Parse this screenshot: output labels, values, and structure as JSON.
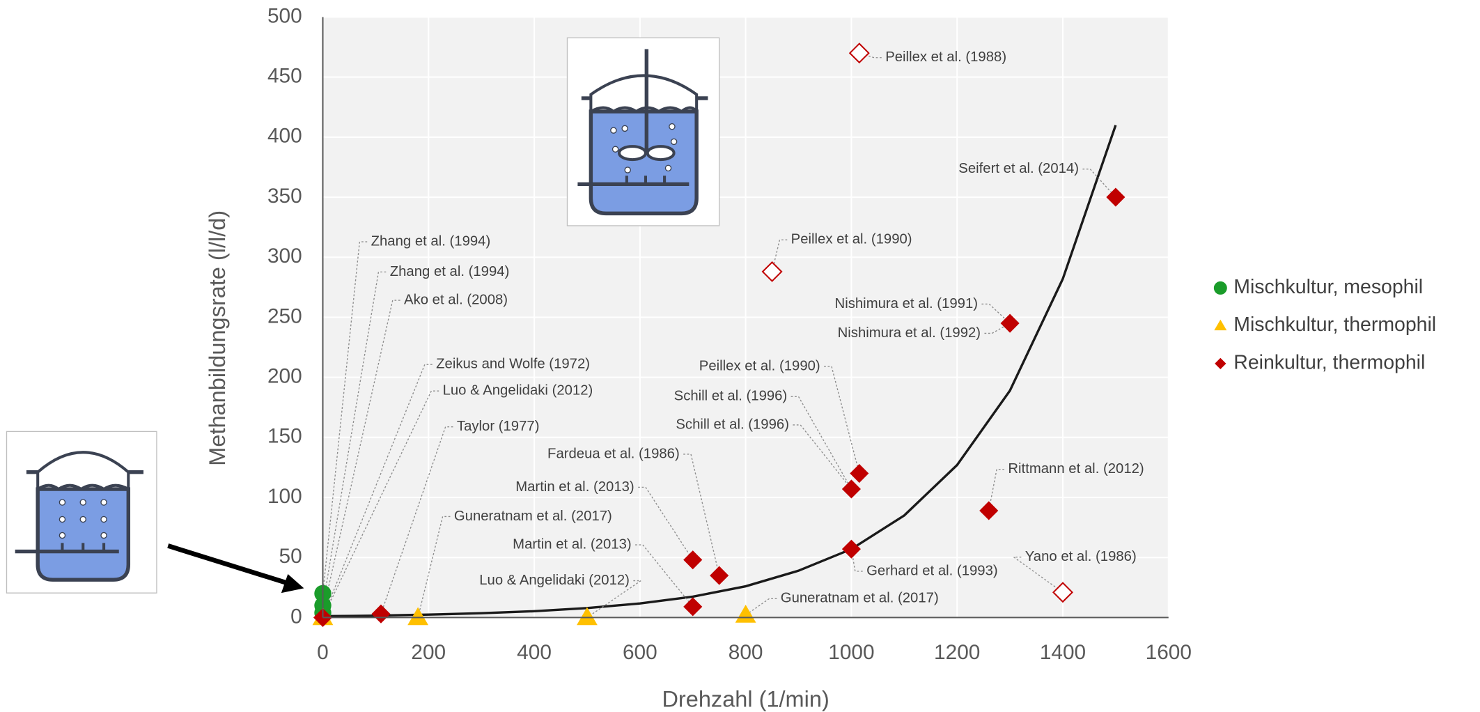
{
  "chart_data": {
    "type": "scatter",
    "x_label": "Drehzahl (1/min)",
    "y_label": "Methanbildungsrate (l/l/d)",
    "xlim": [
      0,
      1600
    ],
    "xticks": [
      0,
      200,
      400,
      600,
      800,
      1000,
      1200,
      1400,
      1600
    ],
    "ylim": [
      0,
      500
    ],
    "yticks": [
      0,
      50,
      100,
      150,
      200,
      250,
      300,
      350,
      400,
      450,
      500
    ],
    "grid": true,
    "legend": "right",
    "series": [
      {
        "name": "Mischkultur, mesophil",
        "color": "#1a9c2a",
        "marker": "circle",
        "x": [
          0,
          0,
          0
        ],
        "values": [
          20,
          10,
          4
        ]
      },
      {
        "name": "Mischkultur, thermophil",
        "color": "#ffc000",
        "marker": "triangle",
        "x": [
          0,
          180,
          500,
          800
        ],
        "values": [
          0,
          0,
          0,
          2
        ]
      },
      {
        "name": "Reinkultur, thermophil",
        "color": "#c00000",
        "marker": "diamond",
        "x": [
          0,
          110,
          700,
          700,
          750,
          1000,
          1015,
          1000,
          1260,
          1300,
          1500
        ],
        "values": [
          0,
          3,
          48,
          9,
          35,
          107,
          120,
          57,
          89,
          245,
          350
        ]
      },
      {
        "color": "#c00000",
        "marker": "diamond-open",
        "x": [
          1015,
          850,
          1400
        ],
        "values": [
          470,
          288,
          21
        ]
      },
      {
        "type": "line",
        "color": "#1a1a1a",
        "x": [
          0,
          100,
          200,
          300,
          400,
          500,
          600,
          700,
          800,
          900,
          1000,
          1100,
          1200,
          1300,
          1400,
          1500
        ],
        "values": [
          1.1,
          1.6,
          2.4,
          3.6,
          5.3,
          7.9,
          11.7,
          17.4,
          26,
          39,
          57,
          85,
          127,
          189,
          282,
          410
        ]
      }
    ],
    "annotations": [
      "Zhang et al. (1994)",
      "Zhang et al. (1994)",
      "Ako et al. (2008)",
      "Zeikus and Wolfe (1972)",
      "Luo & Angelidaki (2012)",
      "Taylor (1977)",
      "Guneratnam et al. (2017)",
      "Luo & Angelidaki (2012)",
      "Martin et al. (2013)",
      "Martin et al. (2013)",
      "Fardeua et al. (1986)",
      "Schill et al. (1996)",
      "Schill et al. (1996)",
      "Peillex et al. (1990)",
      "Gerhard et al. (1993)",
      "Guneratnam et al. (2017)",
      "Rittmann et al. (2012)",
      "Yano et al. (1986)",
      "Nishimura et al. (1991)",
      "Nishimura et al. (1992)",
      "Peillex et al. (1990)",
      "Peillex et al. (1988)",
      "Seifert et al. (2014)"
    ]
  }
}
